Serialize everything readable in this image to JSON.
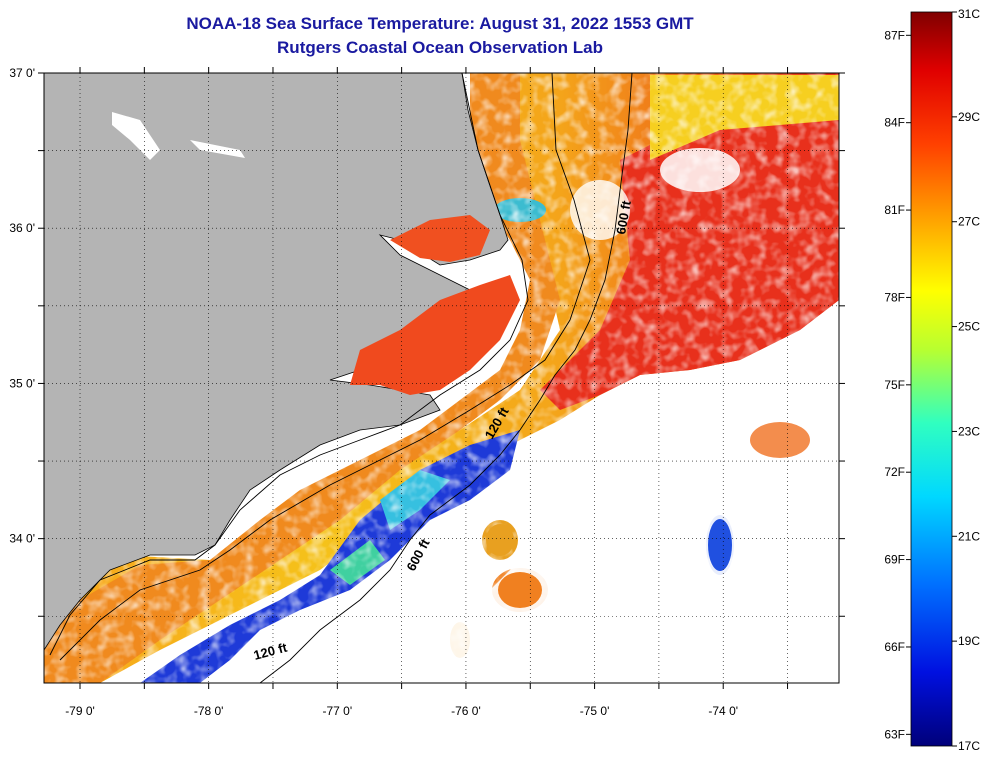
{
  "title": {
    "line1": "NOAA-18 Sea Surface Temperature:  August 31, 2022 1553 GMT",
    "line2": "Rutgers Coastal Ocean Observation Lab"
  },
  "map": {
    "lat_ticks": [
      {
        "value": 37.0,
        "label": "37 0'"
      },
      {
        "value": 36.5,
        "label": ""
      },
      {
        "value": 36.0,
        "label": "36 0'"
      },
      {
        "value": 35.5,
        "label": ""
      },
      {
        "value": 35.0,
        "label": "35 0'"
      },
      {
        "value": 34.5,
        "label": ""
      },
      {
        "value": 34.0,
        "label": "34 0'"
      },
      {
        "value": 33.5,
        "label": ""
      }
    ],
    "lon_ticks": [
      {
        "value": -79.0,
        "label": "-79 0'"
      },
      {
        "value": -78.5,
        "label": ""
      },
      {
        "value": -78.0,
        "label": "-78 0'"
      },
      {
        "value": -77.5,
        "label": ""
      },
      {
        "value": -77.0,
        "label": "-77 0'"
      },
      {
        "value": -76.5,
        "label": ""
      },
      {
        "value": -76.0,
        "label": "-76 0'"
      },
      {
        "value": -75.5,
        "label": ""
      },
      {
        "value": -75.0,
        "label": "-75 0'"
      },
      {
        "value": -74.5,
        "label": ""
      },
      {
        "value": -74.0,
        "label": "-74 0'"
      },
      {
        "value": -73.5,
        "label": ""
      }
    ],
    "contour_labels": {
      "c600_north": "600 ft",
      "c120_mid": "120 ft",
      "c600_south": "600 ft",
      "c120_south": "120 ft"
    },
    "colors": {
      "land": "#b4b4b4",
      "cloud": "#ffffff"
    }
  },
  "colorbar": {
    "celsius": [
      {
        "value": 31,
        "label": "31C"
      },
      {
        "value": 29,
        "label": "29C"
      },
      {
        "value": 27,
        "label": "27C"
      },
      {
        "value": 25,
        "label": "25C"
      },
      {
        "value": 23,
        "label": "23C"
      },
      {
        "value": 21,
        "label": "21C"
      },
      {
        "value": 19,
        "label": "19C"
      },
      {
        "value": 17,
        "label": "17C"
      }
    ],
    "fahrenheit": [
      {
        "value": 87,
        "label": "87F"
      },
      {
        "value": 84,
        "label": "84F"
      },
      {
        "value": 81,
        "label": "81F"
      },
      {
        "value": 78,
        "label": "78F"
      },
      {
        "value": 75,
        "label": "75F"
      },
      {
        "value": 72,
        "label": "72F"
      },
      {
        "value": 69,
        "label": "69F"
      },
      {
        "value": 66,
        "label": "66F"
      },
      {
        "value": 63,
        "label": "63F"
      }
    ],
    "range_c": [
      17,
      31
    ]
  }
}
